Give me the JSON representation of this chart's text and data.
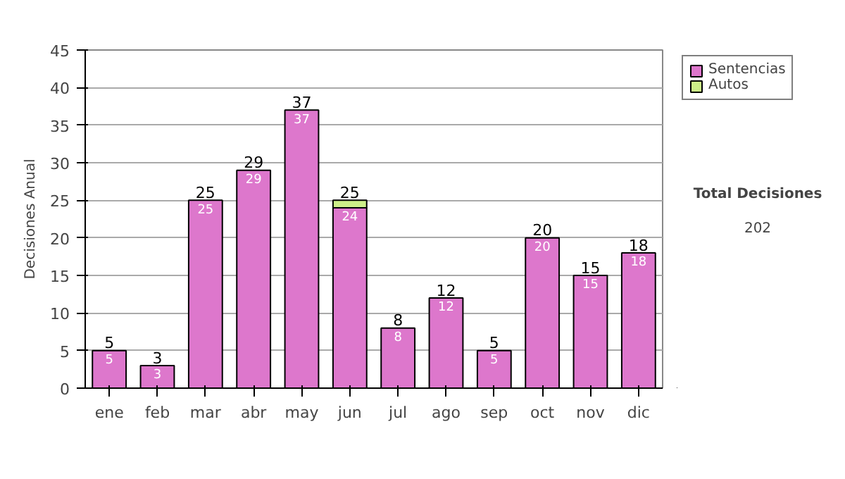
{
  "chart_data": {
    "type": "bar",
    "stacked": true,
    "ylabel": "Decisiones Anual",
    "categories": [
      "ene",
      "feb",
      "mar",
      "abr",
      "may",
      "jun",
      "jul",
      "ago",
      "sep",
      "oct",
      "nov",
      "dic"
    ],
    "series": [
      {
        "name": "Sentencias",
        "color": "#dd77cc",
        "values": [
          5,
          3,
          25,
          29,
          37,
          24,
          8,
          12,
          5,
          20,
          15,
          18
        ],
        "value_labels": [
          "5",
          "3",
          "25",
          "29",
          "37",
          "24",
          "8",
          "12",
          "5",
          "20",
          "15",
          "18"
        ]
      },
      {
        "name": "Autos",
        "color": "#ccee88",
        "values": [
          null,
          null,
          null,
          null,
          null,
          1,
          null,
          null,
          null,
          null,
          null,
          null
        ]
      }
    ],
    "totals": [
      "5",
      "3",
      "25",
      "29",
      "37",
      "25",
      "8",
      "12",
      "5",
      "20",
      "15",
      "18"
    ],
    "ylim": [
      0,
      45
    ],
    "yticks": [
      0,
      5,
      10,
      15,
      20,
      25,
      30,
      35,
      40,
      45
    ],
    "grid": "y",
    "legend": "right",
    "annotations": [
      "Total Decisiones",
      "202"
    ]
  }
}
